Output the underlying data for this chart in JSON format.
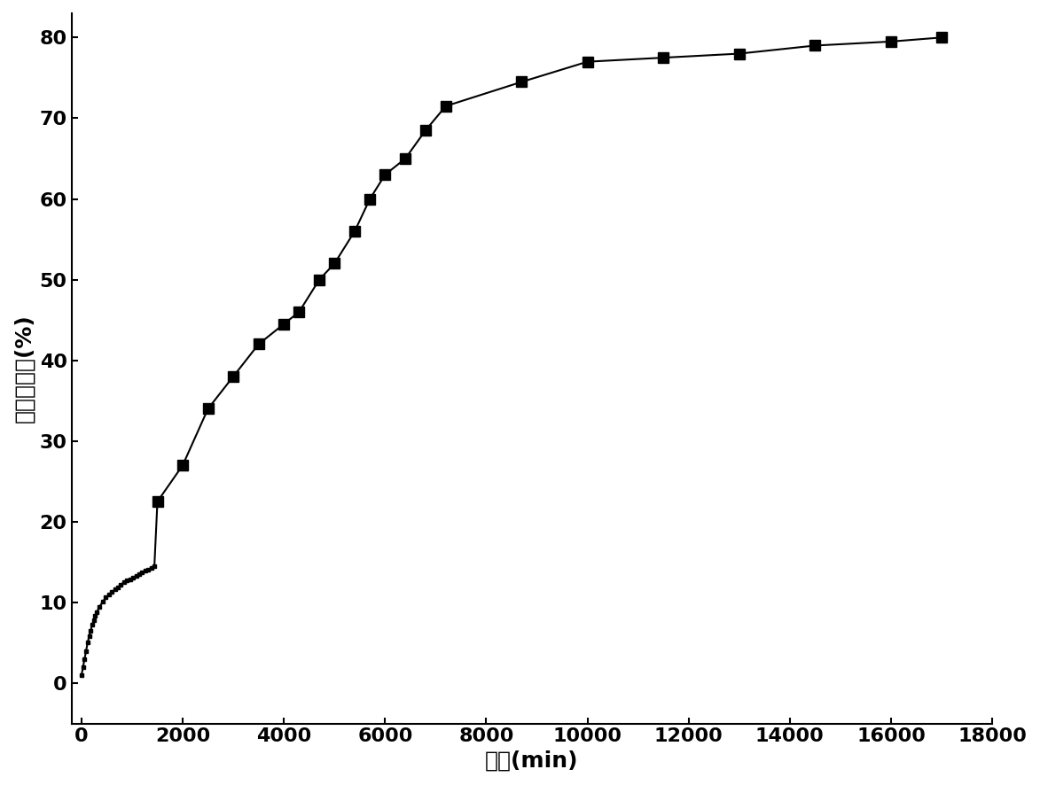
{
  "x_dense": [
    0,
    30,
    60,
    90,
    120,
    150,
    180,
    210,
    240,
    270,
    300,
    360,
    420,
    480,
    540,
    600,
    660,
    720,
    780,
    840,
    900,
    960,
    1020,
    1080,
    1140,
    1200,
    1260,
    1320,
    1380,
    1440
  ],
  "y_dense": [
    1.0,
    2.0,
    3.0,
    4.0,
    5.0,
    5.8,
    6.5,
    7.2,
    7.8,
    8.3,
    8.8,
    9.5,
    10.1,
    10.6,
    11.0,
    11.3,
    11.6,
    11.9,
    12.2,
    12.5,
    12.7,
    12.9,
    13.1,
    13.3,
    13.5,
    13.7,
    13.9,
    14.1,
    14.3,
    14.5
  ],
  "x_sparse": [
    1500,
    2000,
    2500,
    3000,
    3500,
    4000,
    4300,
    4700,
    5000,
    5400,
    5700,
    6000,
    6400,
    6800,
    7200,
    8700,
    10000,
    11500,
    13000,
    14500,
    16000,
    17000
  ],
  "y_sparse": [
    22.5,
    27.0,
    34.0,
    38.0,
    42.0,
    44.5,
    46.0,
    50.0,
    52.0,
    56.0,
    60.0,
    63.0,
    65.0,
    68.5,
    71.5,
    74.5,
    77.0,
    77.5,
    78.0,
    79.0,
    79.5,
    80.0
  ],
  "xlabel": "时间(min)",
  "ylabel": "药物释放量(%)",
  "xlim": [
    -200,
    18000
  ],
  "ylim": [
    -5,
    83
  ],
  "xticks": [
    0,
    2000,
    4000,
    6000,
    8000,
    10000,
    12000,
    14000,
    16000,
    18000
  ],
  "yticks": [
    0,
    10,
    20,
    30,
    40,
    50,
    60,
    70,
    80
  ],
  "line_color": "#000000",
  "marker": "s",
  "markersize_dense": 3,
  "markersize_sparse": 8,
  "linewidth": 1.5,
  "label_fontsize": 18,
  "tick_fontsize": 16
}
